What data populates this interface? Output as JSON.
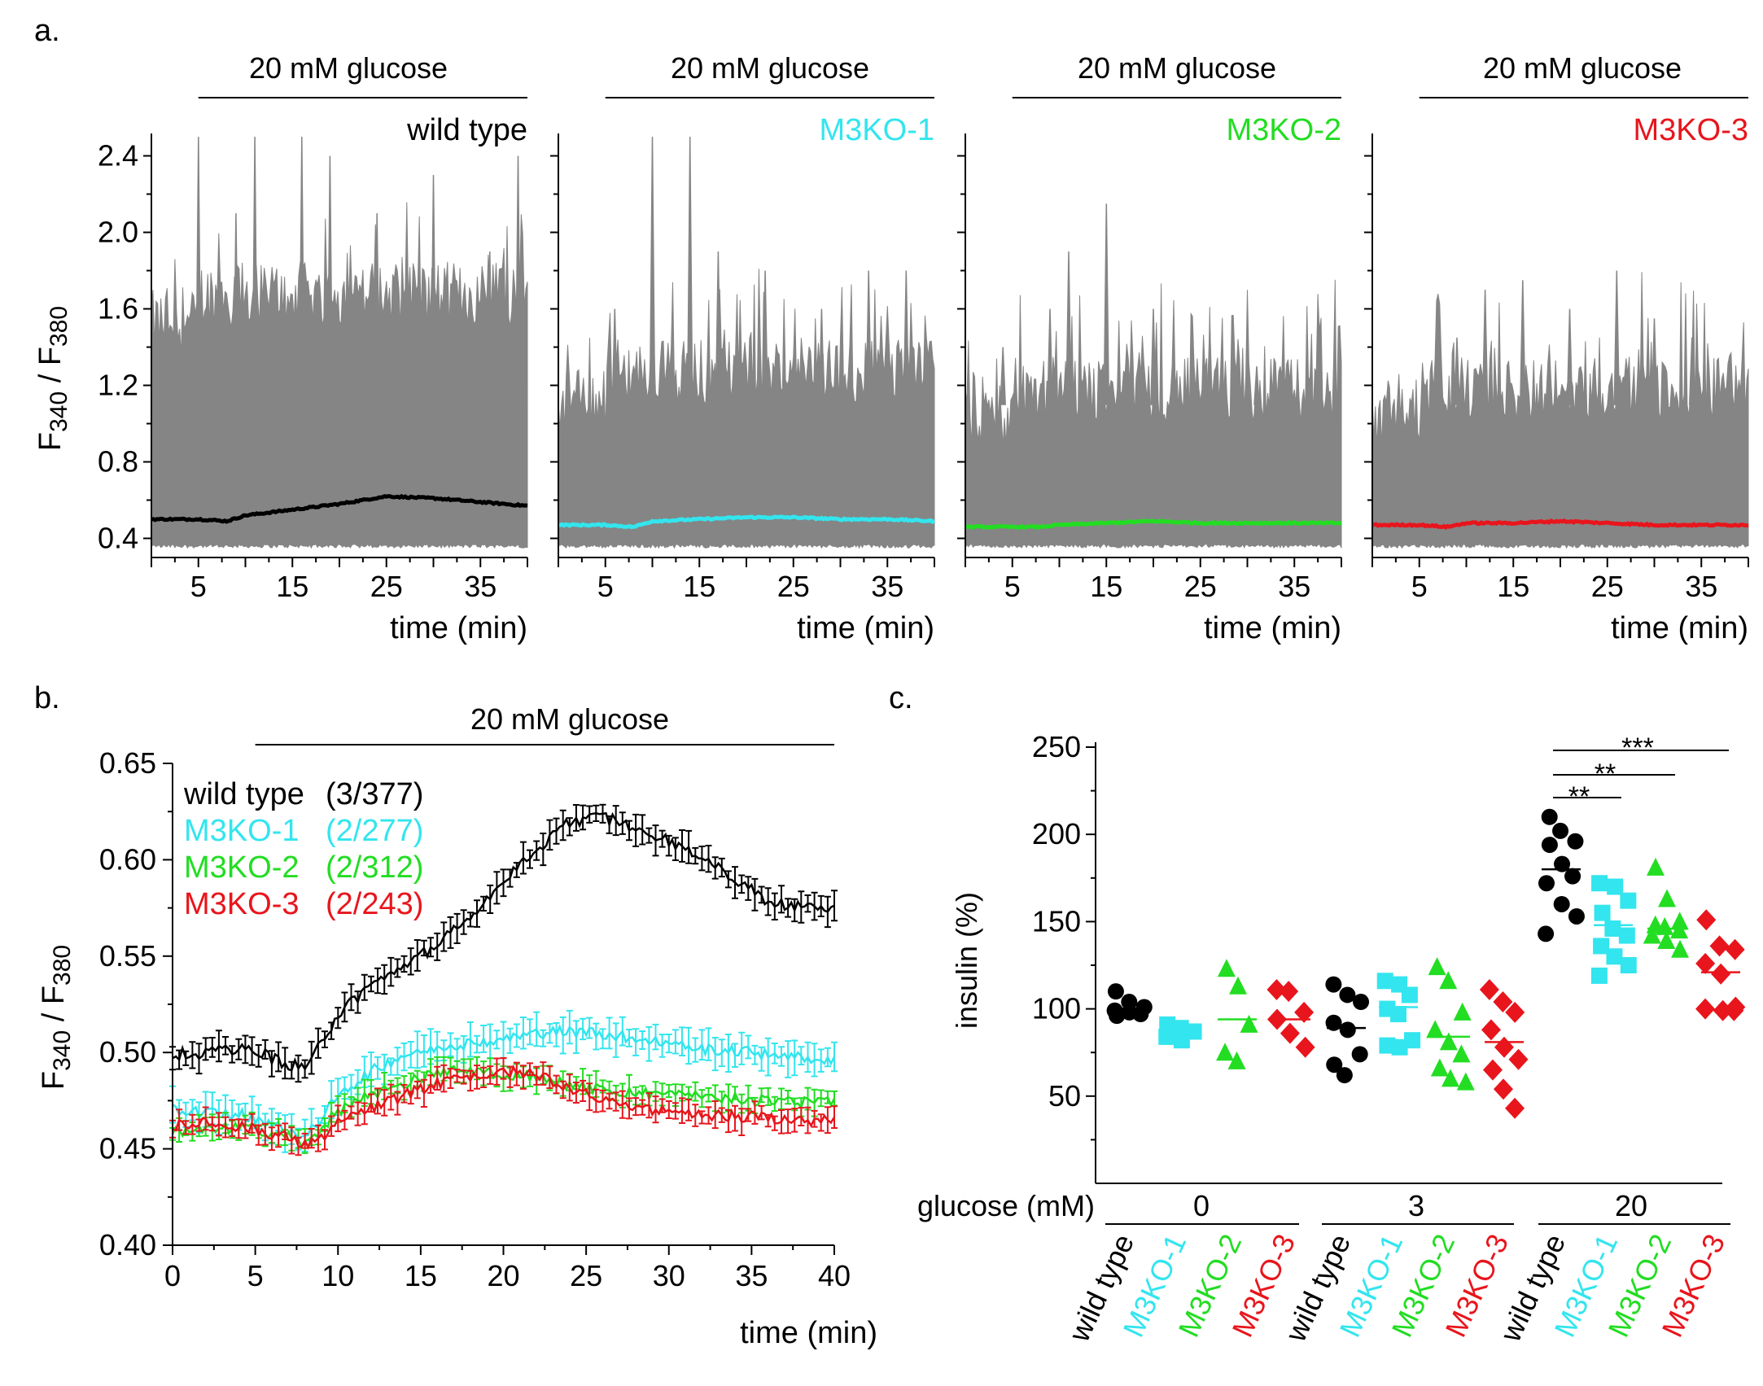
{
  "colors": {
    "black": "#000000",
    "cyan": "#33e5ee",
    "green": "#22dd22",
    "red": "#e8151c",
    "gray": "#858585"
  },
  "panel_a": {
    "label": "a.",
    "glucose_label": "20 mM glucose",
    "ylabel_main": "F",
    "ylabel_sub1": "340",
    "ylabel_sep": " / F",
    "ylabel_sub2": "380",
    "xlabel": "time (min)"
  },
  "panel_b": {
    "label": "b.",
    "glucose_label": "20 mM glucose",
    "ylabel_main": "F",
    "ylabel_sub1": "340",
    "ylabel_sep": " / F",
    "ylabel_sub2": "380",
    "xlabel": "time (min)",
    "legend": [
      {
        "name": "wild type",
        "count": "(3/377)",
        "color": "#000000"
      },
      {
        "name": "M3KO-1",
        "count": "(2/277)",
        "color": "#33e5ee"
      },
      {
        "name": "M3KO-2",
        "count": "(2/312)",
        "color": "#22dd22"
      },
      {
        "name": "M3KO-3",
        "count": "(2/243)",
        "color": "#e8151c"
      }
    ]
  },
  "panel_c": {
    "label": "c.",
    "ylabel": "insulin (%)",
    "glucose_axis_label": "glucose (mM)",
    "glucose_groups": [
      "0",
      "3",
      "20"
    ],
    "genotypes": [
      "wild type",
      "M3KO-1",
      "M3KO-2",
      "M3KO-3"
    ],
    "significance": [
      "**",
      "**",
      "***"
    ]
  },
  "chart_data": [
    {
      "type": "line",
      "panel": "a",
      "ylim": [
        0.3,
        2.5
      ],
      "xlim": [
        0,
        40
      ],
      "yticks": [
        0.4,
        0.8,
        1.2,
        1.6,
        2.0,
        2.4
      ],
      "ytick_labels": [
        "0.4",
        "0.8",
        "1.2",
        "1.6",
        "2.0",
        "2.4"
      ],
      "xticks": [
        5,
        15,
        25,
        35
      ],
      "xtick_labels": [
        "5",
        "15",
        "25",
        "35"
      ],
      "subplots": [
        {
          "title": "wild type",
          "color": "#000000",
          "glucose_start_min": 5,
          "mean": [
            [
              0,
              0.5
            ],
            [
              5,
              0.5
            ],
            [
              8,
              0.49
            ],
            [
              10,
              0.52
            ],
            [
              15,
              0.55
            ],
            [
              20,
              0.58
            ],
            [
              25,
              0.62
            ],
            [
              30,
              0.61
            ],
            [
              35,
              0.59
            ],
            [
              40,
              0.57
            ]
          ],
          "spikes": [
            [
              5,
              2.5
            ],
            [
              9,
              2.1
            ],
            [
              11,
              2.5
            ],
            [
              16,
              2.5
            ],
            [
              19,
              2.4
            ],
            [
              24,
              2.1
            ],
            [
              30,
              2.3
            ],
            [
              36,
              1.9
            ],
            [
              39,
              2.4
            ]
          ],
          "band_top": 1.35
        },
        {
          "title": "M3KO-1",
          "color": "#33e5ee",
          "glucose_start_min": 5,
          "mean": [
            [
              0,
              0.47
            ],
            [
              5,
              0.47
            ],
            [
              8,
              0.46
            ],
            [
              10,
              0.49
            ],
            [
              15,
              0.5
            ],
            [
              20,
              0.51
            ],
            [
              25,
              0.51
            ],
            [
              30,
              0.5
            ],
            [
              35,
              0.5
            ],
            [
              40,
              0.49
            ]
          ],
          "spikes": [
            [
              6,
              1.6
            ],
            [
              10,
              2.5
            ],
            [
              14,
              2.5
            ],
            [
              17,
              1.9
            ],
            [
              22,
              1.8
            ],
            [
              28,
              1.6
            ],
            [
              33,
              1.8
            ],
            [
              37,
              1.8
            ]
          ],
          "band_top": 0.95
        },
        {
          "title": "M3KO-2",
          "color": "#22dd22",
          "glucose_start_min": 5,
          "mean": [
            [
              0,
              0.46
            ],
            [
              5,
              0.46
            ],
            [
              8,
              0.46
            ],
            [
              10,
              0.47
            ],
            [
              15,
              0.48
            ],
            [
              20,
              0.49
            ],
            [
              25,
              0.48
            ],
            [
              30,
              0.48
            ],
            [
              35,
              0.48
            ],
            [
              40,
              0.48
            ]
          ],
          "spikes": [
            [
              4,
              1.4
            ],
            [
              9,
              1.6
            ],
            [
              11,
              1.9
            ],
            [
              15,
              2.15
            ],
            [
              20,
              1.6
            ],
            [
              26,
              1.5
            ],
            [
              31,
              1.3
            ],
            [
              36,
              1.1
            ]
          ],
          "band_top": 0.85
        },
        {
          "title": "M3KO-3",
          "color": "#e8151c",
          "glucose_start_min": 5,
          "mean": [
            [
              0,
              0.47
            ],
            [
              5,
              0.47
            ],
            [
              8,
              0.46
            ],
            [
              10,
              0.48
            ],
            [
              15,
              0.48
            ],
            [
              20,
              0.49
            ],
            [
              25,
              0.48
            ],
            [
              30,
              0.47
            ],
            [
              35,
              0.47
            ],
            [
              40,
              0.47
            ]
          ],
          "spikes": [
            [
              9,
              1.45
            ],
            [
              12,
              1.7
            ],
            [
              16,
              1.75
            ],
            [
              21,
              1.6
            ],
            [
              26,
              1.8
            ],
            [
              30,
              1.55
            ],
            [
              34,
              1.45
            ],
            [
              38,
              1.3
            ]
          ],
          "band_top": 0.85
        }
      ]
    },
    {
      "type": "line",
      "panel": "b",
      "xlim": [
        0,
        40
      ],
      "ylim": [
        0.4,
        0.65
      ],
      "xticks": [
        0,
        5,
        10,
        15,
        20,
        25,
        30,
        35,
        40
      ],
      "xtick_labels": [
        "0",
        "5",
        "10",
        "15",
        "20",
        "25",
        "30",
        "35",
        "40"
      ],
      "yticks": [
        0.4,
        0.45,
        0.5,
        0.55,
        0.6,
        0.65
      ],
      "ytick_labels": [
        "0.40",
        "0.45",
        "0.50",
        "0.55",
        "0.60",
        "0.65"
      ],
      "glucose_start_min": 5,
      "series": [
        {
          "name": "wild type (3/377)",
          "color": "#000000",
          "points": [
            [
              0,
              0.499
            ],
            [
              2,
              0.5
            ],
            [
              4,
              0.501
            ],
            [
              5,
              0.502
            ],
            [
              6,
              0.497
            ],
            [
              7,
              0.494
            ],
            [
              8,
              0.492
            ],
            [
              9,
              0.505
            ],
            [
              10,
              0.52
            ],
            [
              12,
              0.535
            ],
            [
              14,
              0.545
            ],
            [
              16,
              0.556
            ],
            [
              18,
              0.57
            ],
            [
              20,
              0.59
            ],
            [
              22,
              0.605
            ],
            [
              24,
              0.62
            ],
            [
              26,
              0.622
            ],
            [
              28,
              0.617
            ],
            [
              30,
              0.61
            ],
            [
              32,
              0.602
            ],
            [
              34,
              0.59
            ],
            [
              36,
              0.578
            ],
            [
              38,
              0.576
            ],
            [
              40,
              0.575
            ]
          ],
          "err": 0.006
        },
        {
          "name": "M3KO-1 (2/277)",
          "color": "#33e5ee",
          "points": [
            [
              0,
              0.47
            ],
            [
              2,
              0.469
            ],
            [
              4,
              0.468
            ],
            [
              5,
              0.466
            ],
            [
              7,
              0.46
            ],
            [
              8,
              0.456
            ],
            [
              9,
              0.465
            ],
            [
              10,
              0.478
            ],
            [
              12,
              0.49
            ],
            [
              14,
              0.499
            ],
            [
              16,
              0.503
            ],
            [
              18,
              0.505
            ],
            [
              20,
              0.507
            ],
            [
              22,
              0.51
            ],
            [
              24,
              0.511
            ],
            [
              26,
              0.51
            ],
            [
              28,
              0.507
            ],
            [
              30,
              0.505
            ],
            [
              32,
              0.502
            ],
            [
              34,
              0.501
            ],
            [
              36,
              0.499
            ],
            [
              38,
              0.498
            ],
            [
              40,
              0.495
            ]
          ],
          "err": 0.007
        },
        {
          "name": "M3KO-2 (2/312)",
          "color": "#22dd22",
          "points": [
            [
              0,
              0.459
            ],
            [
              2,
              0.46
            ],
            [
              4,
              0.461
            ],
            [
              5,
              0.46
            ],
            [
              7,
              0.457
            ],
            [
              8,
              0.452
            ],
            [
              9,
              0.46
            ],
            [
              10,
              0.47
            ],
            [
              12,
              0.478
            ],
            [
              14,
              0.484
            ],
            [
              16,
              0.49
            ],
            [
              18,
              0.491
            ],
            [
              20,
              0.489
            ],
            [
              22,
              0.487
            ],
            [
              24,
              0.483
            ],
            [
              26,
              0.481
            ],
            [
              28,
              0.479
            ],
            [
              30,
              0.478
            ],
            [
              32,
              0.477
            ],
            [
              34,
              0.476
            ],
            [
              36,
              0.475
            ],
            [
              38,
              0.474
            ],
            [
              40,
              0.474
            ]
          ],
          "err": 0.005
        },
        {
          "name": "M3KO-3 (2/243)",
          "color": "#e8151c",
          "points": [
            [
              0,
              0.462
            ],
            [
              2,
              0.463
            ],
            [
              4,
              0.462
            ],
            [
              5,
              0.46
            ],
            [
              7,
              0.456
            ],
            [
              8,
              0.452
            ],
            [
              9,
              0.456
            ],
            [
              10,
              0.463
            ],
            [
              12,
              0.471
            ],
            [
              14,
              0.478
            ],
            [
              16,
              0.484
            ],
            [
              18,
              0.488
            ],
            [
              20,
              0.49
            ],
            [
              22,
              0.489
            ],
            [
              24,
              0.482
            ],
            [
              26,
              0.476
            ],
            [
              28,
              0.472
            ],
            [
              30,
              0.469
            ],
            [
              32,
              0.468
            ],
            [
              34,
              0.467
            ],
            [
              36,
              0.466
            ],
            [
              38,
              0.465
            ],
            [
              40,
              0.465
            ]
          ],
          "err": 0.005
        }
      ]
    },
    {
      "type": "scatter",
      "panel": "c",
      "ylabel": "insulin (%)",
      "ylim": [
        0,
        250
      ],
      "yticks": [
        50,
        100,
        150,
        200,
        250
      ],
      "ytick_labels": [
        "50",
        "100",
        "150",
        "200",
        "250"
      ],
      "groups": [
        {
          "glucose": "0",
          "genotype": "wild type",
          "color": "#000000",
          "marker": "circle",
          "mean": 99,
          "values": [
            110,
            104,
            101,
            99,
            98,
            97,
            96
          ]
        },
        {
          "glucose": "0",
          "genotype": "M3KO-1",
          "color": "#33e5ee",
          "marker": "square",
          "mean": 88,
          "values": [
            91,
            89,
            87,
            84,
            82
          ]
        },
        {
          "glucose": "0",
          "genotype": "M3KO-2",
          "color": "#22dd22",
          "marker": "triangle",
          "mean": 94,
          "values": [
            123,
            113,
            91,
            75,
            70
          ]
        },
        {
          "glucose": "0",
          "genotype": "M3KO-3",
          "color": "#e8151c",
          "marker": "diamond",
          "mean": 94,
          "values": [
            111,
            110,
            98,
            94,
            86,
            78
          ]
        },
        {
          "glucose": "3",
          "genotype": "wild type",
          "color": "#000000",
          "marker": "circle",
          "mean": 89,
          "values": [
            114,
            108,
            104,
            92,
            88,
            74,
            68,
            62
          ]
        },
        {
          "glucose": "3",
          "genotype": "M3KO-1",
          "color": "#33e5ee",
          "marker": "square",
          "mean": 101,
          "values": [
            116,
            114,
            108,
            100,
            97,
            82,
            79,
            78
          ]
        },
        {
          "glucose": "3",
          "genotype": "M3KO-2",
          "color": "#22dd22",
          "marker": "triangle",
          "mean": 84,
          "values": [
            124,
            116,
            98,
            88,
            81,
            74,
            66,
            60,
            58
          ]
        },
        {
          "glucose": "3",
          "genotype": "M3KO-3",
          "color": "#e8151c",
          "marker": "diamond",
          "mean": 81,
          "values": [
            111,
            104,
            98,
            88,
            78,
            71,
            65,
            54,
            43
          ]
        },
        {
          "glucose": "20",
          "genotype": "wild type",
          "color": "#000000",
          "marker": "circle",
          "mean": 180,
          "values": [
            210,
            202,
            196,
            194,
            183,
            176,
            172,
            160,
            153,
            143
          ]
        },
        {
          "glucose": "20",
          "genotype": "M3KO-1",
          "color": "#33e5ee",
          "marker": "square",
          "mean": 148,
          "values": [
            172,
            170,
            162,
            155,
            146,
            142,
            136,
            130,
            125,
            119
          ]
        },
        {
          "glucose": "20",
          "genotype": "M3KO-2",
          "color": "#22dd22",
          "marker": "triangle",
          "mean": 146,
          "values": [
            181,
            163,
            150,
            148,
            147,
            145,
            142,
            139,
            134
          ]
        },
        {
          "glucose": "20",
          "genotype": "M3KO-3",
          "color": "#e8151c",
          "marker": "diamond",
          "mean": 121,
          "values": [
            151,
            136,
            134,
            126,
            120,
            101,
            100,
            99,
            99
          ]
        }
      ]
    }
  ]
}
